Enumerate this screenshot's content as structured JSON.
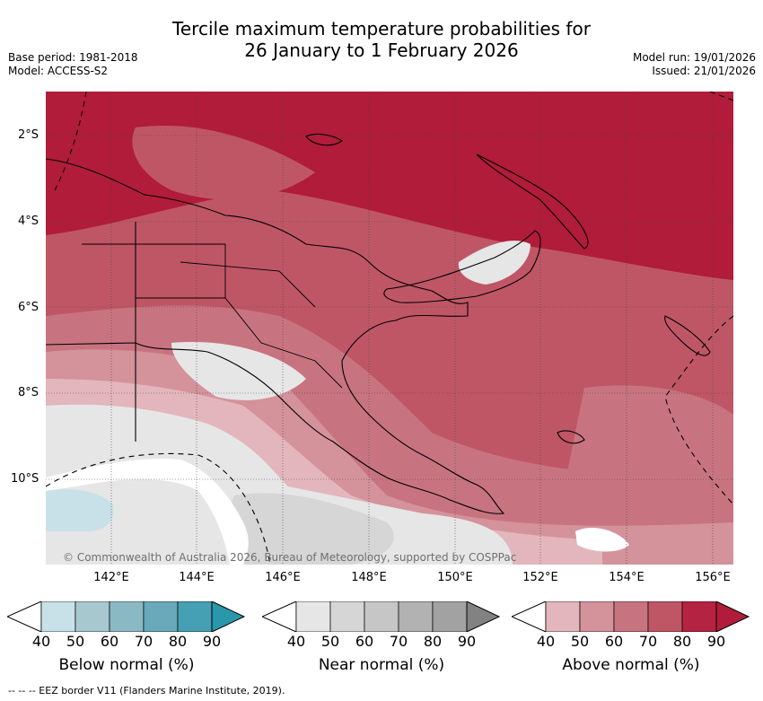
{
  "title_line1": "Tercile maximum temperature probabilities for",
  "title_line2": "26 January to 1 February 2026",
  "meta_left": [
    "Base period: 1981-2018",
    "Model: ACCESS-S2"
  ],
  "meta_right": [
    "Model run: 19/01/2026",
    "Issued: 21/01/2026"
  ],
  "copyright": "© Commonwealth of Australia 2026, Bureau of Meteorology, supported by COSPPac",
  "footer": "--  --  -- EEZ border V11 (Flanders Marine Institute, 2019).",
  "lat_labels": [
    "2°S",
    "4°S",
    "6°S",
    "8°S",
    "10°S"
  ],
  "lon_labels": [
    "142°E",
    "144°E",
    "146°E",
    "148°E",
    "150°E",
    "152°E",
    "154°E",
    "156°E"
  ],
  "legends": [
    {
      "label": "Below normal (%)",
      "ticks": [
        "40",
        "50",
        "60",
        "70",
        "80",
        "90"
      ],
      "colors": [
        "#ffffff",
        "#c8e1e8",
        "#a7c8cf",
        "#8ab9c3",
        "#6aa9b9",
        "#45a0b4",
        "#2a97aa"
      ]
    },
    {
      "label": "Near normal (%)",
      "ticks": [
        "40",
        "50",
        "60",
        "70",
        "80",
        "90"
      ],
      "colors": [
        "#ffffff",
        "#e6e6e6",
        "#d6d6d6",
        "#c6c6c6",
        "#b2b2b2",
        "#a2a2a2",
        "#828282"
      ]
    },
    {
      "label": "Above normal (%)",
      "ticks": [
        "40",
        "50",
        "60",
        "70",
        "80",
        "90"
      ],
      "colors": [
        "#ffffff",
        "#e2b6bc",
        "#d4929b",
        "#c87480",
        "#bf5666",
        "#b42341",
        "#b01c3a"
      ]
    }
  ],
  "palette": {
    "above_90": "#b01c3a",
    "above_80": "#b42341",
    "above_70": "#bf5666",
    "above_60": "#c87480",
    "above_50": "#d4929b",
    "above_40": "#e2b6bc",
    "near_50": "#e6e6e6",
    "near_60": "#d6d6d6",
    "below_50": "#c8e1e8"
  }
}
